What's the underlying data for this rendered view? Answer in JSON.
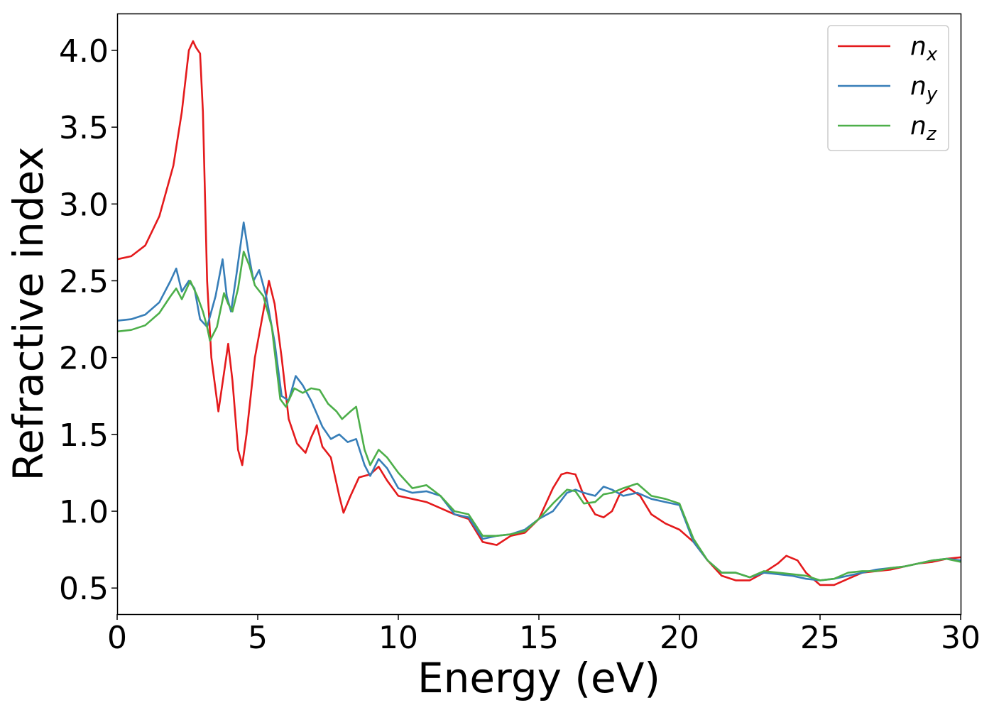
{
  "chart_data": {
    "type": "line",
    "xlabel": "Energy (eV)",
    "ylabel": "Refractive index",
    "xlim": [
      0,
      30
    ],
    "ylim": [
      0.33,
      4.24
    ],
    "xticks": [
      0,
      5,
      10,
      15,
      20,
      25,
      30
    ],
    "xtick_labels": [
      "0",
      "5",
      "10",
      "15",
      "20",
      "25",
      "30"
    ],
    "yticks": [
      0.5,
      1.0,
      1.5,
      2.0,
      2.5,
      3.0,
      3.5,
      4.0
    ],
    "ytick_labels": [
      "0.5",
      "1.0",
      "1.5",
      "2.0",
      "2.5",
      "3.0",
      "3.5",
      "4.0"
    ],
    "grid": false,
    "legend_position": "top-right",
    "series": [
      {
        "name": "n",
        "subscript": "x",
        "color": "#e41a1c",
        "points": [
          [
            0,
            2.64
          ],
          [
            0.5,
            2.66
          ],
          [
            1.0,
            2.73
          ],
          [
            1.5,
            2.92
          ],
          [
            2.0,
            3.25
          ],
          [
            2.3,
            3.6
          ],
          [
            2.55,
            4.0
          ],
          [
            2.7,
            4.06
          ],
          [
            2.8,
            4.02
          ],
          [
            2.95,
            3.98
          ],
          [
            3.05,
            3.6
          ],
          [
            3.2,
            2.5
          ],
          [
            3.35,
            2.0
          ],
          [
            3.6,
            1.65
          ],
          [
            3.8,
            1.9
          ],
          [
            3.95,
            2.09
          ],
          [
            4.1,
            1.85
          ],
          [
            4.3,
            1.4
          ],
          [
            4.45,
            1.3
          ],
          [
            4.6,
            1.5
          ],
          [
            4.9,
            2.0
          ],
          [
            5.2,
            2.3
          ],
          [
            5.4,
            2.5
          ],
          [
            5.6,
            2.35
          ],
          [
            5.85,
            2.0
          ],
          [
            6.1,
            1.6
          ],
          [
            6.4,
            1.44
          ],
          [
            6.7,
            1.38
          ],
          [
            6.9,
            1.48
          ],
          [
            7.1,
            1.56
          ],
          [
            7.3,
            1.42
          ],
          [
            7.6,
            1.35
          ],
          [
            7.9,
            1.1
          ],
          [
            8.05,
            0.99
          ],
          [
            8.3,
            1.1
          ],
          [
            8.6,
            1.22
          ],
          [
            9.0,
            1.24
          ],
          [
            9.3,
            1.29
          ],
          [
            9.6,
            1.2
          ],
          [
            10.0,
            1.1
          ],
          [
            10.5,
            1.08
          ],
          [
            11.0,
            1.06
          ],
          [
            11.5,
            1.02
          ],
          [
            12.0,
            0.98
          ],
          [
            12.5,
            0.95
          ],
          [
            13.0,
            0.8
          ],
          [
            13.5,
            0.78
          ],
          [
            14.0,
            0.84
          ],
          [
            14.5,
            0.86
          ],
          [
            15.0,
            0.95
          ],
          [
            15.5,
            1.15
          ],
          [
            15.8,
            1.24
          ],
          [
            16.0,
            1.25
          ],
          [
            16.3,
            1.24
          ],
          [
            16.6,
            1.1
          ],
          [
            17.0,
            0.98
          ],
          [
            17.3,
            0.96
          ],
          [
            17.6,
            1.0
          ],
          [
            17.9,
            1.12
          ],
          [
            18.2,
            1.15
          ],
          [
            18.6,
            1.1
          ],
          [
            19.0,
            0.98
          ],
          [
            19.5,
            0.92
          ],
          [
            20.0,
            0.88
          ],
          [
            20.5,
            0.8
          ],
          [
            21.0,
            0.68
          ],
          [
            21.5,
            0.58
          ],
          [
            22.0,
            0.55
          ],
          [
            22.5,
            0.55
          ],
          [
            23.0,
            0.6
          ],
          [
            23.5,
            0.66
          ],
          [
            23.8,
            0.71
          ],
          [
            24.2,
            0.68
          ],
          [
            24.5,
            0.6
          ],
          [
            25.0,
            0.52
          ],
          [
            25.5,
            0.52
          ],
          [
            26.0,
            0.56
          ],
          [
            26.5,
            0.6
          ],
          [
            27.0,
            0.61
          ],
          [
            27.5,
            0.62
          ],
          [
            28.0,
            0.64
          ],
          [
            28.5,
            0.66
          ],
          [
            29.0,
            0.67
          ],
          [
            29.5,
            0.69
          ],
          [
            30.0,
            0.7
          ]
        ]
      },
      {
        "name": "n",
        "subscript": "y",
        "color": "#377eb8",
        "points": [
          [
            0,
            2.24
          ],
          [
            0.5,
            2.25
          ],
          [
            1.0,
            2.28
          ],
          [
            1.5,
            2.36
          ],
          [
            1.9,
            2.5
          ],
          [
            2.1,
            2.58
          ],
          [
            2.3,
            2.43
          ],
          [
            2.55,
            2.5
          ],
          [
            2.75,
            2.45
          ],
          [
            2.95,
            2.25
          ],
          [
            3.2,
            2.2
          ],
          [
            3.5,
            2.4
          ],
          [
            3.75,
            2.64
          ],
          [
            3.9,
            2.4
          ],
          [
            4.05,
            2.3
          ],
          [
            4.25,
            2.55
          ],
          [
            4.5,
            2.88
          ],
          [
            4.7,
            2.65
          ],
          [
            4.85,
            2.5
          ],
          [
            5.05,
            2.57
          ],
          [
            5.3,
            2.4
          ],
          [
            5.6,
            2.1
          ],
          [
            5.85,
            1.75
          ],
          [
            6.1,
            1.72
          ],
          [
            6.35,
            1.88
          ],
          [
            6.6,
            1.82
          ],
          [
            6.9,
            1.72
          ],
          [
            7.3,
            1.55
          ],
          [
            7.6,
            1.47
          ],
          [
            7.9,
            1.5
          ],
          [
            8.2,
            1.45
          ],
          [
            8.5,
            1.47
          ],
          [
            8.8,
            1.3
          ],
          [
            9.0,
            1.23
          ],
          [
            9.3,
            1.34
          ],
          [
            9.6,
            1.28
          ],
          [
            10.0,
            1.15
          ],
          [
            10.5,
            1.12
          ],
          [
            11.0,
            1.13
          ],
          [
            11.5,
            1.1
          ],
          [
            12.0,
            0.98
          ],
          [
            12.5,
            0.96
          ],
          [
            13.0,
            0.82
          ],
          [
            13.5,
            0.84
          ],
          [
            14.0,
            0.85
          ],
          [
            14.5,
            0.88
          ],
          [
            15.0,
            0.95
          ],
          [
            15.5,
            1.0
          ],
          [
            16.0,
            1.12
          ],
          [
            16.3,
            1.14
          ],
          [
            16.6,
            1.12
          ],
          [
            17.0,
            1.1
          ],
          [
            17.3,
            1.16
          ],
          [
            17.6,
            1.14
          ],
          [
            18.0,
            1.1
          ],
          [
            18.5,
            1.12
          ],
          [
            19.0,
            1.08
          ],
          [
            19.5,
            1.06
          ],
          [
            20.0,
            1.04
          ],
          [
            20.5,
            0.8
          ],
          [
            21.0,
            0.68
          ],
          [
            21.5,
            0.6
          ],
          [
            22.0,
            0.6
          ],
          [
            22.5,
            0.57
          ],
          [
            23.0,
            0.6
          ],
          [
            23.5,
            0.59
          ],
          [
            24.0,
            0.58
          ],
          [
            24.5,
            0.56
          ],
          [
            25.0,
            0.55
          ],
          [
            25.5,
            0.56
          ],
          [
            26.0,
            0.58
          ],
          [
            26.5,
            0.6
          ],
          [
            27.0,
            0.62
          ],
          [
            27.5,
            0.63
          ],
          [
            28.0,
            0.64
          ],
          [
            28.5,
            0.66
          ],
          [
            29.0,
            0.68
          ],
          [
            29.5,
            0.69
          ],
          [
            30.0,
            0.68
          ]
        ]
      },
      {
        "name": "n",
        "subscript": "z",
        "color": "#4daf4a",
        "points": [
          [
            0,
            2.17
          ],
          [
            0.5,
            2.18
          ],
          [
            1.0,
            2.21
          ],
          [
            1.5,
            2.29
          ],
          [
            1.9,
            2.4
          ],
          [
            2.1,
            2.45
          ],
          [
            2.3,
            2.38
          ],
          [
            2.6,
            2.5
          ],
          [
            2.85,
            2.4
          ],
          [
            3.05,
            2.3
          ],
          [
            3.2,
            2.2
          ],
          [
            3.3,
            2.11
          ],
          [
            3.55,
            2.2
          ],
          [
            3.8,
            2.42
          ],
          [
            3.95,
            2.35
          ],
          [
            4.1,
            2.3
          ],
          [
            4.3,
            2.45
          ],
          [
            4.5,
            2.69
          ],
          [
            4.7,
            2.6
          ],
          [
            4.9,
            2.47
          ],
          [
            5.2,
            2.4
          ],
          [
            5.5,
            2.2
          ],
          [
            5.8,
            1.73
          ],
          [
            6.0,
            1.68
          ],
          [
            6.3,
            1.8
          ],
          [
            6.6,
            1.77
          ],
          [
            6.9,
            1.8
          ],
          [
            7.2,
            1.79
          ],
          [
            7.5,
            1.7
          ],
          [
            7.8,
            1.65
          ],
          [
            8.0,
            1.6
          ],
          [
            8.3,
            1.65
          ],
          [
            8.5,
            1.68
          ],
          [
            8.8,
            1.4
          ],
          [
            9.0,
            1.3
          ],
          [
            9.3,
            1.4
          ],
          [
            9.6,
            1.35
          ],
          [
            10.0,
            1.25
          ],
          [
            10.5,
            1.15
          ],
          [
            11.0,
            1.17
          ],
          [
            11.5,
            1.1
          ],
          [
            12.0,
            1.0
          ],
          [
            12.5,
            0.98
          ],
          [
            13.0,
            0.84
          ],
          [
            13.5,
            0.84
          ],
          [
            14.0,
            0.85
          ],
          [
            14.5,
            0.87
          ],
          [
            15.0,
            0.95
          ],
          [
            15.5,
            1.05
          ],
          [
            16.0,
            1.14
          ],
          [
            16.3,
            1.13
          ],
          [
            16.6,
            1.05
          ],
          [
            17.0,
            1.06
          ],
          [
            17.3,
            1.11
          ],
          [
            17.6,
            1.12
          ],
          [
            18.0,
            1.15
          ],
          [
            18.5,
            1.18
          ],
          [
            19.0,
            1.1
          ],
          [
            19.5,
            1.08
          ],
          [
            20.0,
            1.05
          ],
          [
            20.5,
            0.82
          ],
          [
            21.0,
            0.68
          ],
          [
            21.5,
            0.6
          ],
          [
            22.0,
            0.6
          ],
          [
            22.5,
            0.57
          ],
          [
            23.0,
            0.61
          ],
          [
            23.5,
            0.6
          ],
          [
            24.0,
            0.59
          ],
          [
            24.5,
            0.58
          ],
          [
            25.0,
            0.55
          ],
          [
            25.5,
            0.56
          ],
          [
            26.0,
            0.6
          ],
          [
            26.5,
            0.61
          ],
          [
            27.0,
            0.61
          ],
          [
            27.5,
            0.63
          ],
          [
            28.0,
            0.64
          ],
          [
            28.5,
            0.66
          ],
          [
            29.0,
            0.68
          ],
          [
            29.5,
            0.69
          ],
          [
            30.0,
            0.67
          ]
        ]
      }
    ]
  }
}
